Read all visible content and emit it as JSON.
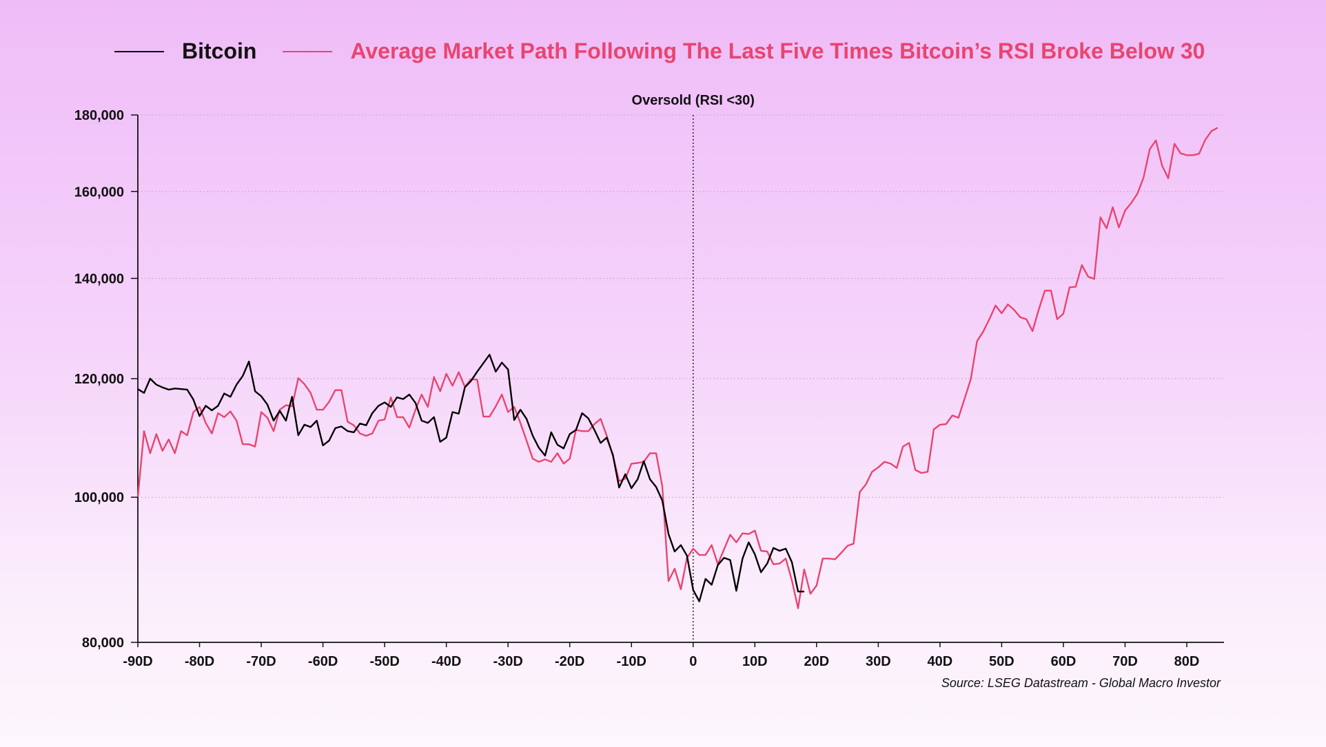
{
  "chart_data": {
    "type": "line",
    "title": "",
    "annotation": "Oversold (RSI <30)",
    "source": "Source: LSEG Datastream - Global Macro Investor",
    "xlabel": "",
    "ylabel": "",
    "x_start": -90,
    "x_step_days": 1,
    "xlim": [
      -90,
      86
    ],
    "ylim": [
      80000,
      180000
    ],
    "y_scale": "log",
    "grid": "horizontal dotted",
    "legend_position": "top",
    "x_ticks": [
      "-90D",
      "-80D",
      "-70D",
      "-60D",
      "-50D",
      "-40D",
      "-30D",
      "-20D",
      "-10D",
      "0",
      "10D",
      "20D",
      "30D",
      "40D",
      "50D",
      "60D",
      "70D",
      "80D"
    ],
    "x_tick_values": [
      -90,
      -80,
      -70,
      -60,
      -50,
      -40,
      -30,
      -20,
      -10,
      0,
      10,
      20,
      30,
      40,
      50,
      60,
      70,
      80
    ],
    "y_ticks": [
      "80,000",
      "100,000",
      "120,000",
      "140,000",
      "160,000",
      "180,000"
    ],
    "y_tick_values": [
      80000,
      100000,
      120000,
      140000,
      160000,
      180000
    ],
    "vline_x": 0,
    "series": [
      {
        "name": "Bitcoin",
        "color": "#000000",
        "values": [
          118100,
          117400,
          120000,
          118900,
          118400,
          118000,
          118200,
          118100,
          118000,
          116200,
          113300,
          115100,
          114300,
          115100,
          117300,
          116700,
          118900,
          120500,
          123200,
          117700,
          116800,
          115300,
          112500,
          114200,
          112500,
          116700,
          110000,
          111800,
          111400,
          112500,
          108300,
          109100,
          111200,
          111500,
          110700,
          110500,
          112000,
          111700,
          113800,
          115100,
          115700,
          114900,
          116600,
          116300,
          117100,
          115600,
          112500,
          112100,
          113100,
          108900,
          109600,
          114000,
          113700,
          118400,
          119600,
          121300,
          122900,
          124500,
          121300,
          123000,
          121700,
          112600,
          114400,
          112800,
          109900,
          107900,
          106600,
          110500,
          108400,
          107800,
          110200,
          110900,
          113800,
          112900,
          110900,
          108700,
          109600,
          106700,
          101500,
          103600,
          101400,
          102800,
          105700,
          102800,
          101600,
          99500,
          94500,
          92000,
          92900,
          91400,
          86700,
          85200,
          88200,
          87400,
          90100,
          91100,
          90800,
          86600,
          91000,
          93300,
          91600,
          89100,
          90300,
          92500,
          92100,
          92400,
          90500,
          86500,
          86500
        ]
      },
      {
        "name": "Average Market Path Following The Last Five Times Bitcoin’s RSI Broke Below 30",
        "color": "#e8456f",
        "values": [
          100000,
          110700,
          107000,
          110200,
          107400,
          109300,
          107000,
          110700,
          110000,
          114000,
          114900,
          112100,
          110300,
          113800,
          113100,
          114100,
          112500,
          108500,
          108500,
          108100,
          114000,
          113000,
          110700,
          114400,
          115200,
          115000,
          120100,
          119000,
          117400,
          114400,
          114400,
          115800,
          117900,
          117900,
          112300,
          111700,
          110300,
          109900,
          110300,
          112500,
          112700,
          116600,
          113100,
          113100,
          111300,
          114400,
          117100,
          114900,
          120300,
          117700,
          120900,
          118700,
          121200,
          118500,
          119900,
          119800,
          113200,
          113200,
          115000,
          117100,
          114000,
          114900,
          112100,
          109100,
          106100,
          105600,
          106000,
          105600,
          107000,
          105300,
          106100,
          110900,
          110700,
          110700,
          111900,
          112800,
          109900,
          106500,
          102500,
          102900,
          105300,
          105400,
          105600,
          107000,
          107000,
          101700,
          87900,
          89600,
          86800,
          91100,
          92400,
          91500,
          91500,
          92900,
          90200,
          92300,
          94400,
          93300,
          94600,
          94500,
          95000,
          92100,
          92000,
          90200,
          90300,
          91000,
          88000,
          84300,
          89500,
          86200,
          87300,
          91000,
          91000,
          90900,
          91800,
          92800,
          93100,
          100800,
          102000,
          104000,
          104700,
          105600,
          105300,
          104600,
          108100,
          108700,
          104300,
          103800,
          104000,
          111000,
          111800,
          111900,
          113400,
          113000,
          116400,
          119900,
          127100,
          129000,
          131500,
          134300,
          132700,
          134500,
          133400,
          131900,
          131500,
          129100,
          133400,
          137400,
          137400,
          131500,
          132600,
          138100,
          138200,
          142900,
          140400,
          139900,
          153800,
          151200,
          156200,
          151400,
          155400,
          157200,
          159500,
          163500,
          170800,
          173100,
          166500,
          163300,
          172200,
          169700,
          169200,
          169200,
          169600,
          173300,
          175600,
          176500
        ]
      }
    ]
  }
}
